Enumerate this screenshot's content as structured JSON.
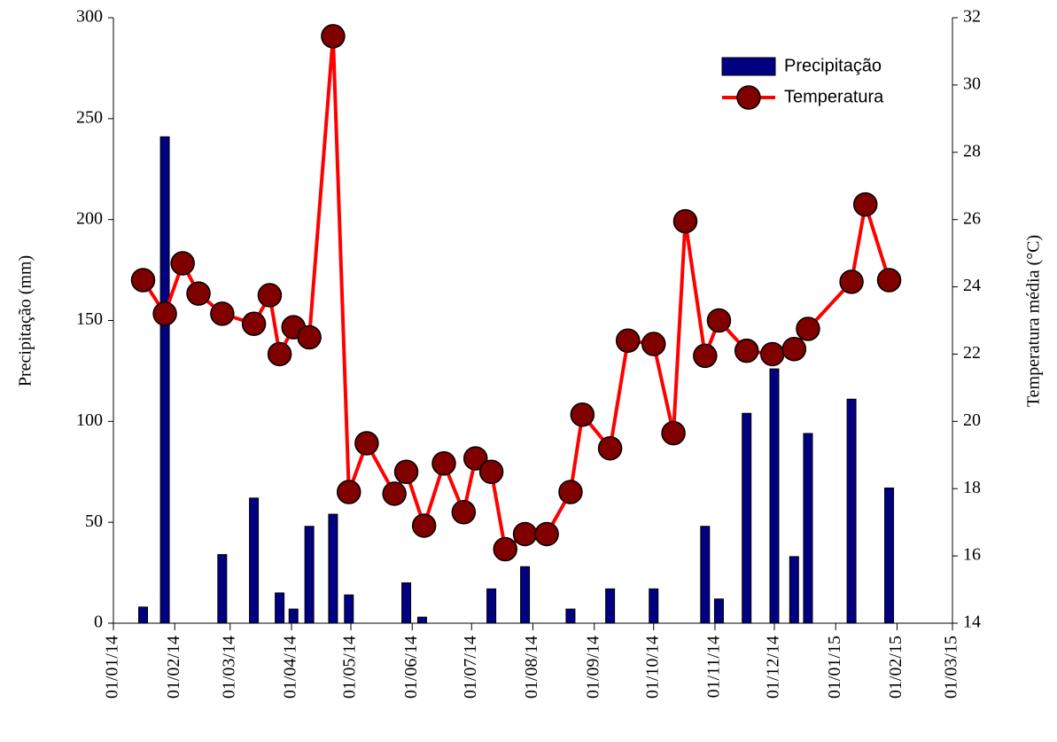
{
  "chart_data": {
    "type": "bar-line",
    "y_label": "Precipitação (mm)",
    "y2_label": "Temperatura média (°C)",
    "xlim": [
      "2014-01-01",
      "2015-03-01"
    ],
    "xticks": [
      {
        "value": "2014-01-01",
        "label": "01/01/14"
      },
      {
        "value": "2014-02-01",
        "label": "01/02/14"
      },
      {
        "value": "2014-03-01",
        "label": "01/03/14"
      },
      {
        "value": "2014-04-01",
        "label": "01/04/14"
      },
      {
        "value": "2014-05-01",
        "label": "01/05/14"
      },
      {
        "value": "2014-06-01",
        "label": "01/06/14"
      },
      {
        "value": "2014-07-01",
        "label": "01/07/14"
      },
      {
        "value": "2014-08-01",
        "label": "01/08/14"
      },
      {
        "value": "2014-09-01",
        "label": "01/09/14"
      },
      {
        "value": "2014-10-01",
        "label": "01/10/14"
      },
      {
        "value": "2014-11-01",
        "label": "01/11/14"
      },
      {
        "value": "2014-12-01",
        "label": "01/12/14"
      },
      {
        "value": "2015-01-01",
        "label": "01/01/15"
      },
      {
        "value": "2015-02-01",
        "label": "01/02/15"
      },
      {
        "value": "2015-03-01",
        "label": "01/03/15"
      }
    ],
    "ylim": [
      0,
      300
    ],
    "yticks": [
      0,
      50,
      100,
      150,
      200,
      250,
      300
    ],
    "y2lim": [
      14,
      32
    ],
    "y2ticks": [
      14,
      16,
      18,
      20,
      22,
      24,
      26,
      28,
      30,
      32
    ],
    "legend": "upper right",
    "series": [
      {
        "name": "Precipitação",
        "type": "bar",
        "color": "#000080",
        "x": [
          "2014-01-16",
          "2014-01-27",
          "2014-02-25",
          "2014-03-13",
          "2014-03-26",
          "2014-04-02",
          "2014-04-10",
          "2014-04-22",
          "2014-04-30",
          "2014-05-29",
          "2014-06-06",
          "2014-07-11",
          "2014-07-28",
          "2014-08-20",
          "2014-09-09",
          "2014-10-01",
          "2014-10-27",
          "2014-11-03",
          "2014-11-17",
          "2014-12-01",
          "2014-12-11",
          "2014-12-18",
          "2015-01-09",
          "2015-01-28"
        ],
        "values": [
          8,
          241,
          34,
          62,
          15,
          7,
          48,
          54,
          14,
          20,
          3,
          17,
          28,
          7,
          17,
          17,
          48,
          12,
          104,
          126,
          33,
          94,
          111,
          67
        ]
      },
      {
        "name": "Temperatura",
        "type": "line",
        "axis": "y2",
        "color": "#ff0000",
        "marker_color": "#800000",
        "x": [
          "2014-01-16",
          "2014-01-27",
          "2014-02-05",
          "2014-02-13",
          "2014-02-25",
          "2014-03-13",
          "2014-03-21",
          "2014-03-26",
          "2014-04-02",
          "2014-04-10",
          "2014-04-22",
          "2014-04-30",
          "2014-05-09",
          "2014-05-23",
          "2014-05-29",
          "2014-06-07",
          "2014-06-17",
          "2014-06-27",
          "2014-07-03",
          "2014-07-11",
          "2014-07-18",
          "2014-07-28",
          "2014-08-08",
          "2014-08-20",
          "2014-08-26",
          "2014-09-09",
          "2014-09-18",
          "2014-10-01",
          "2014-10-11",
          "2014-10-17",
          "2014-10-27",
          "2014-11-03",
          "2014-11-17",
          "2014-11-30",
          "2014-12-11",
          "2014-12-18",
          "2015-01-09",
          "2015-01-16",
          "2015-01-28"
        ],
        "values": [
          24.2,
          23.2,
          24.7,
          23.8,
          23.2,
          22.9,
          23.75,
          22.0,
          22.8,
          22.5,
          31.45,
          17.9,
          19.35,
          17.85,
          18.5,
          16.9,
          18.75,
          17.3,
          18.9,
          18.5,
          16.2,
          16.65,
          16.65,
          17.9,
          20.2,
          19.2,
          22.4,
          22.3,
          19.65,
          25.95,
          21.95,
          23.0,
          22.1,
          22.0,
          22.15,
          22.75,
          24.15,
          26.45,
          24.2
        ]
      }
    ]
  }
}
